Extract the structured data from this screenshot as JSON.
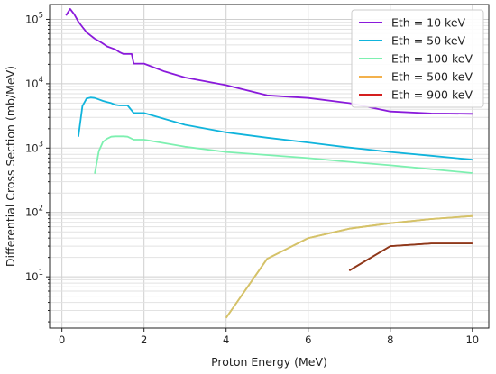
{
  "chart_data": {
    "type": "line",
    "xlabel": "Proton Energy (MeV)",
    "ylabel": "Differential Cross Section (mb/MeV)",
    "xlim": [
      -0.3,
      10.4
    ],
    "ylim": [
      1.6,
      170000
    ],
    "yscale": "log",
    "grid": true,
    "legend_position": "top-right",
    "x_ticks": [
      "0",
      "2",
      "4",
      "6",
      "8",
      "10"
    ],
    "y_ticks": [
      "10^1",
      "10^2",
      "10^3",
      "10^4",
      "10^5"
    ],
    "series": [
      {
        "name": "Eth = 10 keV",
        "color": "#8a1adb",
        "points": [
          [
            0.1,
            115000
          ],
          [
            0.2,
            145000
          ],
          [
            0.3,
            120000
          ],
          [
            0.4,
            92000
          ],
          [
            0.5,
            76000
          ],
          [
            0.6,
            63000
          ],
          [
            0.7,
            56000
          ],
          [
            0.8,
            50000
          ],
          [
            0.9,
            46000
          ],
          [
            1.0,
            42000
          ],
          [
            1.1,
            38000
          ],
          [
            1.2,
            36000
          ],
          [
            1.3,
            34000
          ],
          [
            1.4,
            31000
          ],
          [
            1.5,
            29000
          ],
          [
            1.6,
            29000
          ],
          [
            1.7,
            29000
          ],
          [
            1.75,
            20500
          ],
          [
            2.0,
            20500
          ],
          [
            2.5,
            15500
          ],
          [
            3.0,
            12500
          ],
          [
            4.0,
            9500
          ],
          [
            5.0,
            6600
          ],
          [
            6.0,
            6000
          ],
          [
            7.0,
            5000
          ],
          [
            8.0,
            3700
          ],
          [
            9.0,
            3450
          ],
          [
            10.0,
            3400
          ]
        ]
      },
      {
        "name": "Eth = 50 keV",
        "color": "#10b4dc",
        "points": [
          [
            0.4,
            1500
          ],
          [
            0.5,
            4500
          ],
          [
            0.6,
            5900
          ],
          [
            0.7,
            6100
          ],
          [
            0.8,
            6000
          ],
          [
            0.9,
            5700
          ],
          [
            1.0,
            5400
          ],
          [
            1.1,
            5200
          ],
          [
            1.2,
            5000
          ],
          [
            1.3,
            4700
          ],
          [
            1.4,
            4600
          ],
          [
            1.5,
            4600
          ],
          [
            1.6,
            4600
          ],
          [
            1.75,
            3500
          ],
          [
            2.0,
            3500
          ],
          [
            3.0,
            2300
          ],
          [
            4.0,
            1750
          ],
          [
            5.0,
            1450
          ],
          [
            6.0,
            1220
          ],
          [
            7.0,
            1020
          ],
          [
            8.0,
            870
          ],
          [
            9.0,
            760
          ],
          [
            10.0,
            660
          ]
        ]
      },
      {
        "name": "Eth = 100 keV",
        "color": "#7df0b0",
        "points": [
          [
            0.8,
            400
          ],
          [
            0.9,
            900
          ],
          [
            1.0,
            1250
          ],
          [
            1.1,
            1400
          ],
          [
            1.2,
            1500
          ],
          [
            1.3,
            1520
          ],
          [
            1.4,
            1520
          ],
          [
            1.5,
            1520
          ],
          [
            1.6,
            1500
          ],
          [
            1.75,
            1350
          ],
          [
            2.0,
            1350
          ],
          [
            3.0,
            1050
          ],
          [
            4.0,
            870
          ],
          [
            5.0,
            780
          ],
          [
            6.0,
            700
          ],
          [
            7.0,
            610
          ],
          [
            8.0,
            540
          ],
          [
            9.0,
            470
          ],
          [
            10.0,
            410
          ]
        ]
      },
      {
        "name": "Eth = 500 keV",
        "color": "#f3b14c",
        "points": [
          [
            4.0,
            2.3
          ],
          [
            5.0,
            19
          ],
          [
            6.0,
            40
          ],
          [
            7.0,
            56
          ],
          [
            8.0,
            68
          ],
          [
            9.0,
            79
          ],
          [
            10.0,
            88
          ]
        ]
      },
      {
        "name": "Eth = 900 keV",
        "color": "#d41e1e",
        "points": [
          [
            7.0,
            12.5
          ],
          [
            8.0,
            30
          ],
          [
            9.0,
            33
          ],
          [
            10.0,
            33
          ]
        ]
      }
    ],
    "overlap_segments": [
      {
        "color": "#d3c36a",
        "points": [
          [
            4.0,
            2.3
          ],
          [
            5.0,
            19
          ],
          [
            6.0,
            40
          ],
          [
            7.0,
            56
          ],
          [
            8.0,
            68
          ],
          [
            9.0,
            79
          ],
          [
            10.0,
            88
          ]
        ]
      },
      {
        "color": "#8b3a1a",
        "points": [
          [
            7.0,
            12.5
          ],
          [
            8.0,
            30
          ],
          [
            9.0,
            33
          ],
          [
            10.0,
            33
          ]
        ]
      }
    ]
  }
}
